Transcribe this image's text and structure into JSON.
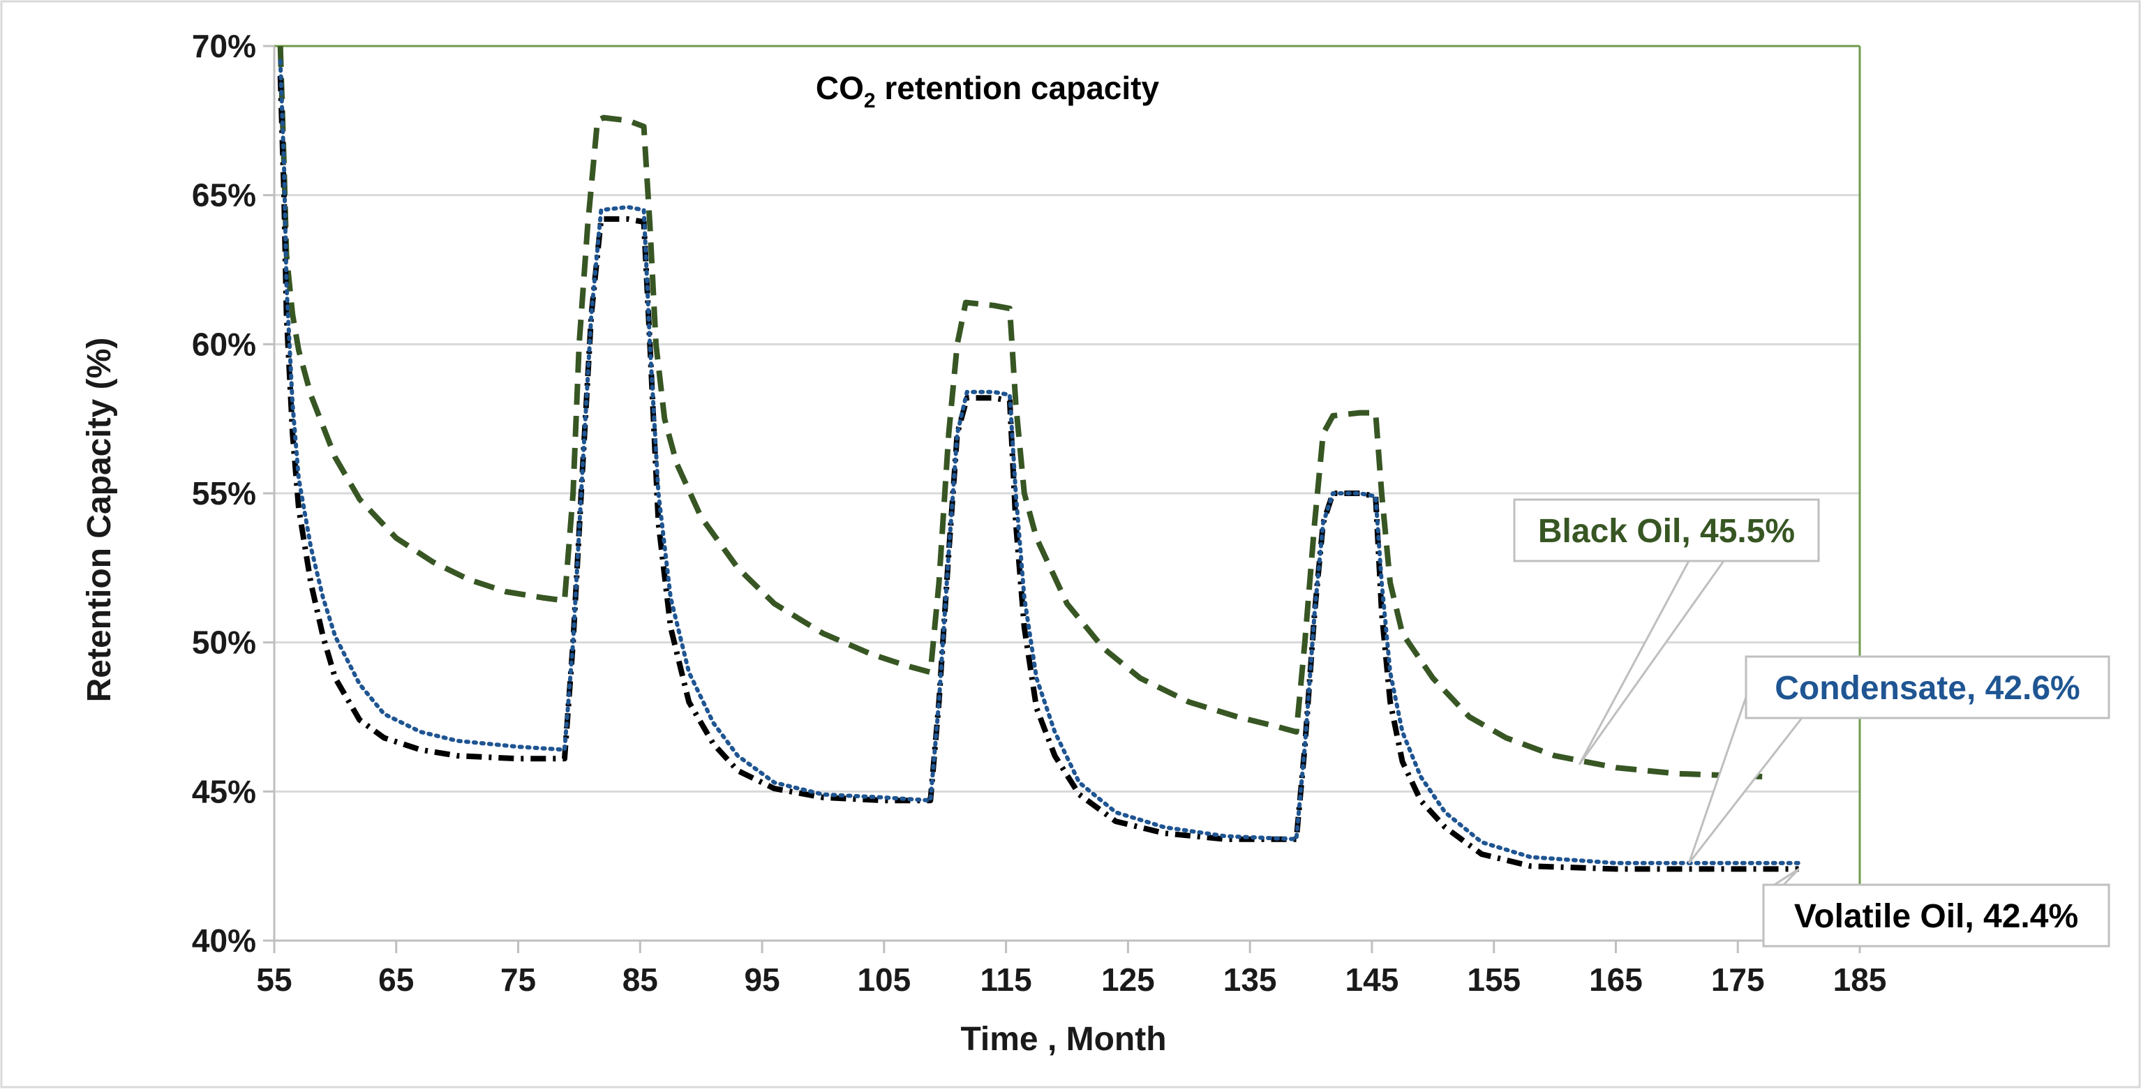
{
  "chart_data": {
    "type": "line",
    "title": "CO₂ retention capacity",
    "title_parts": {
      "prefix": "CO",
      "subscript": "2",
      "suffix": " retention capacity"
    },
    "xlabel": "Time , Month",
    "ylabel": "Retention Capacity (%)",
    "xlim": [
      55,
      185
    ],
    "ylim": [
      40,
      70
    ],
    "x_ticks": [
      55,
      65,
      75,
      85,
      95,
      105,
      115,
      125,
      135,
      145,
      155,
      165,
      175,
      185
    ],
    "y_ticks": [
      40,
      45,
      50,
      55,
      60,
      65,
      70
    ],
    "y_tick_suffix": "%",
    "grid": true,
    "legend": "callouts",
    "colors": {
      "black_oil": "#375623",
      "condensate": "#1f5592",
      "volatile_oil": "#000000",
      "frame": "#6f9a4d",
      "grid": "#d9d9d9"
    },
    "series": [
      {
        "name": "Black Oil",
        "label": "Black Oil, 45.5%",
        "final_value": 45.5,
        "style": "dashed",
        "points": [
          [
            55.5,
            70
          ],
          [
            55.8,
            66
          ],
          [
            56,
            63
          ],
          [
            56.5,
            61
          ],
          [
            57,
            59.8
          ],
          [
            58,
            58.3
          ],
          [
            60,
            56.2
          ],
          [
            62,
            54.8
          ],
          [
            65,
            53.5
          ],
          [
            68,
            52.7
          ],
          [
            71,
            52.1
          ],
          [
            74,
            51.7
          ],
          [
            77,
            51.5
          ],
          [
            78.8,
            51.4
          ],
          [
            79.5,
            55
          ],
          [
            80,
            60
          ],
          [
            80.7,
            64
          ],
          [
            81.5,
            67.5
          ],
          [
            82,
            67.6
          ],
          [
            84,
            67.5
          ],
          [
            85.3,
            67.3
          ],
          [
            85.8,
            64
          ],
          [
            86.3,
            60
          ],
          [
            87,
            57.5
          ],
          [
            88,
            56
          ],
          [
            90,
            54.2
          ],
          [
            93,
            52.5
          ],
          [
            96,
            51.3
          ],
          [
            100,
            50.3
          ],
          [
            104,
            49.6
          ],
          [
            107,
            49.2
          ],
          [
            108.8,
            49
          ],
          [
            109.5,
            52
          ],
          [
            110.3,
            57
          ],
          [
            111,
            60
          ],
          [
            111.7,
            61.4
          ],
          [
            114,
            61.3
          ],
          [
            115.3,
            61.2
          ],
          [
            115.8,
            58
          ],
          [
            116.5,
            55
          ],
          [
            117.5,
            53.5
          ],
          [
            120,
            51.3
          ],
          [
            123,
            49.8
          ],
          [
            126,
            48.8
          ],
          [
            130,
            48
          ],
          [
            134,
            47.5
          ],
          [
            137,
            47.2
          ],
          [
            138.8,
            47
          ],
          [
            139.5,
            50
          ],
          [
            140.3,
            54
          ],
          [
            141,
            57
          ],
          [
            141.8,
            57.6
          ],
          [
            144,
            57.7
          ],
          [
            145.3,
            57.7
          ],
          [
            145.8,
            55
          ],
          [
            146.5,
            52
          ],
          [
            147.5,
            50.3
          ],
          [
            150,
            48.8
          ],
          [
            153,
            47.5
          ],
          [
            156,
            46.8
          ],
          [
            160,
            46.2
          ],
          [
            165,
            45.8
          ],
          [
            170,
            45.6
          ],
          [
            177,
            45.5
          ]
        ]
      },
      {
        "name": "Condensate",
        "label": "Condensate, 42.6%",
        "final_value": 42.6,
        "style": "dotted",
        "points": [
          [
            55.5,
            69.5
          ],
          [
            55.8,
            66
          ],
          [
            56,
            62
          ],
          [
            56.5,
            58
          ],
          [
            57,
            55.5
          ],
          [
            58,
            53.2
          ],
          [
            59,
            51.5
          ],
          [
            60,
            50.2
          ],
          [
            62,
            48.6
          ],
          [
            64,
            47.6
          ],
          [
            67,
            47
          ],
          [
            70,
            46.7
          ],
          [
            75,
            46.5
          ],
          [
            78.8,
            46.4
          ],
          [
            79.5,
            50
          ],
          [
            80.3,
            56
          ],
          [
            81,
            61
          ],
          [
            81.8,
            64.5
          ],
          [
            84,
            64.6
          ],
          [
            85.3,
            64.5
          ],
          [
            85.8,
            60
          ],
          [
            86.5,
            55
          ],
          [
            87.5,
            51.5
          ],
          [
            89,
            49
          ],
          [
            91,
            47.3
          ],
          [
            93,
            46.2
          ],
          [
            96,
            45.3
          ],
          [
            100,
            44.9
          ],
          [
            105,
            44.8
          ],
          [
            108.8,
            44.7
          ],
          [
            109.5,
            48
          ],
          [
            110.3,
            53
          ],
          [
            111,
            57
          ],
          [
            111.8,
            58.4
          ],
          [
            114,
            58.4
          ],
          [
            115.3,
            58.3
          ],
          [
            115.8,
            55
          ],
          [
            116.5,
            51.5
          ],
          [
            117.5,
            48.8
          ],
          [
            119,
            47
          ],
          [
            121,
            45.3
          ],
          [
            124,
            44.3
          ],
          [
            128,
            43.8
          ],
          [
            133,
            43.5
          ],
          [
            138.8,
            43.4
          ],
          [
            139.5,
            46.5
          ],
          [
            140.3,
            51
          ],
          [
            141,
            54
          ],
          [
            141.8,
            55
          ],
          [
            144,
            55
          ],
          [
            145.3,
            54.9
          ],
          [
            145.8,
            52
          ],
          [
            146.5,
            49
          ],
          [
            147.5,
            47
          ],
          [
            149,
            45.5
          ],
          [
            151,
            44.3
          ],
          [
            154,
            43.3
          ],
          [
            158,
            42.8
          ],
          [
            165,
            42.6
          ],
          [
            172,
            42.6
          ],
          [
            180,
            42.6
          ]
        ]
      },
      {
        "name": "Volatile Oil",
        "label": "Volatile Oil, 42.4%",
        "final_value": 42.4,
        "style": "dash-dot",
        "points": [
          [
            55.5,
            69
          ],
          [
            55.8,
            65
          ],
          [
            56,
            61
          ],
          [
            56.5,
            57
          ],
          [
            57,
            54.5
          ],
          [
            58,
            52
          ],
          [
            59,
            50.2
          ],
          [
            60,
            48.8
          ],
          [
            62,
            47.4
          ],
          [
            64,
            46.8
          ],
          [
            67,
            46.4
          ],
          [
            70,
            46.2
          ],
          [
            75,
            46.1
          ],
          [
            78.8,
            46.1
          ],
          [
            79.5,
            50
          ],
          [
            80.3,
            56
          ],
          [
            81,
            61
          ],
          [
            81.8,
            64.2
          ],
          [
            84,
            64.2
          ],
          [
            85.3,
            64.1
          ],
          [
            85.8,
            60
          ],
          [
            86.5,
            54
          ],
          [
            87.5,
            50.5
          ],
          [
            89,
            48
          ],
          [
            91,
            46.6
          ],
          [
            93,
            45.7
          ],
          [
            96,
            45.1
          ],
          [
            100,
            44.8
          ],
          [
            105,
            44.7
          ],
          [
            108.8,
            44.7
          ],
          [
            109.5,
            48
          ],
          [
            110.3,
            53
          ],
          [
            111,
            57
          ],
          [
            111.8,
            58.2
          ],
          [
            114,
            58.2
          ],
          [
            115.3,
            58.1
          ],
          [
            115.8,
            54
          ],
          [
            116.5,
            50.5
          ],
          [
            117.5,
            47.8
          ],
          [
            119,
            46.2
          ],
          [
            121,
            44.9
          ],
          [
            124,
            44
          ],
          [
            128,
            43.6
          ],
          [
            133,
            43.4
          ],
          [
            138.8,
            43.4
          ],
          [
            139.5,
            46.5
          ],
          [
            140.3,
            51
          ],
          [
            141,
            54
          ],
          [
            141.8,
            55
          ],
          [
            144,
            55
          ],
          [
            145.3,
            54.9
          ],
          [
            145.8,
            51
          ],
          [
            146.5,
            48
          ],
          [
            147.5,
            46
          ],
          [
            149,
            44.7
          ],
          [
            151,
            43.8
          ],
          [
            154,
            42.9
          ],
          [
            158,
            42.5
          ],
          [
            165,
            42.4
          ],
          [
            172,
            42.4
          ],
          [
            180,
            42.4
          ]
        ]
      }
    ],
    "callouts": [
      {
        "series": "Black Oil",
        "text": "Black Oil, 45.5%",
        "color": "#375623",
        "anchor": [
          162,
          45.9
        ]
      },
      {
        "series": "Condensate",
        "text": "Condensate, 42.6%",
        "color": "#1f5592",
        "anchor": [
          171,
          42.6
        ]
      },
      {
        "series": "Volatile Oil",
        "text": "Volatile Oil, 42.4%",
        "color": "#000000",
        "anchor": [
          180,
          42.4
        ]
      }
    ]
  }
}
